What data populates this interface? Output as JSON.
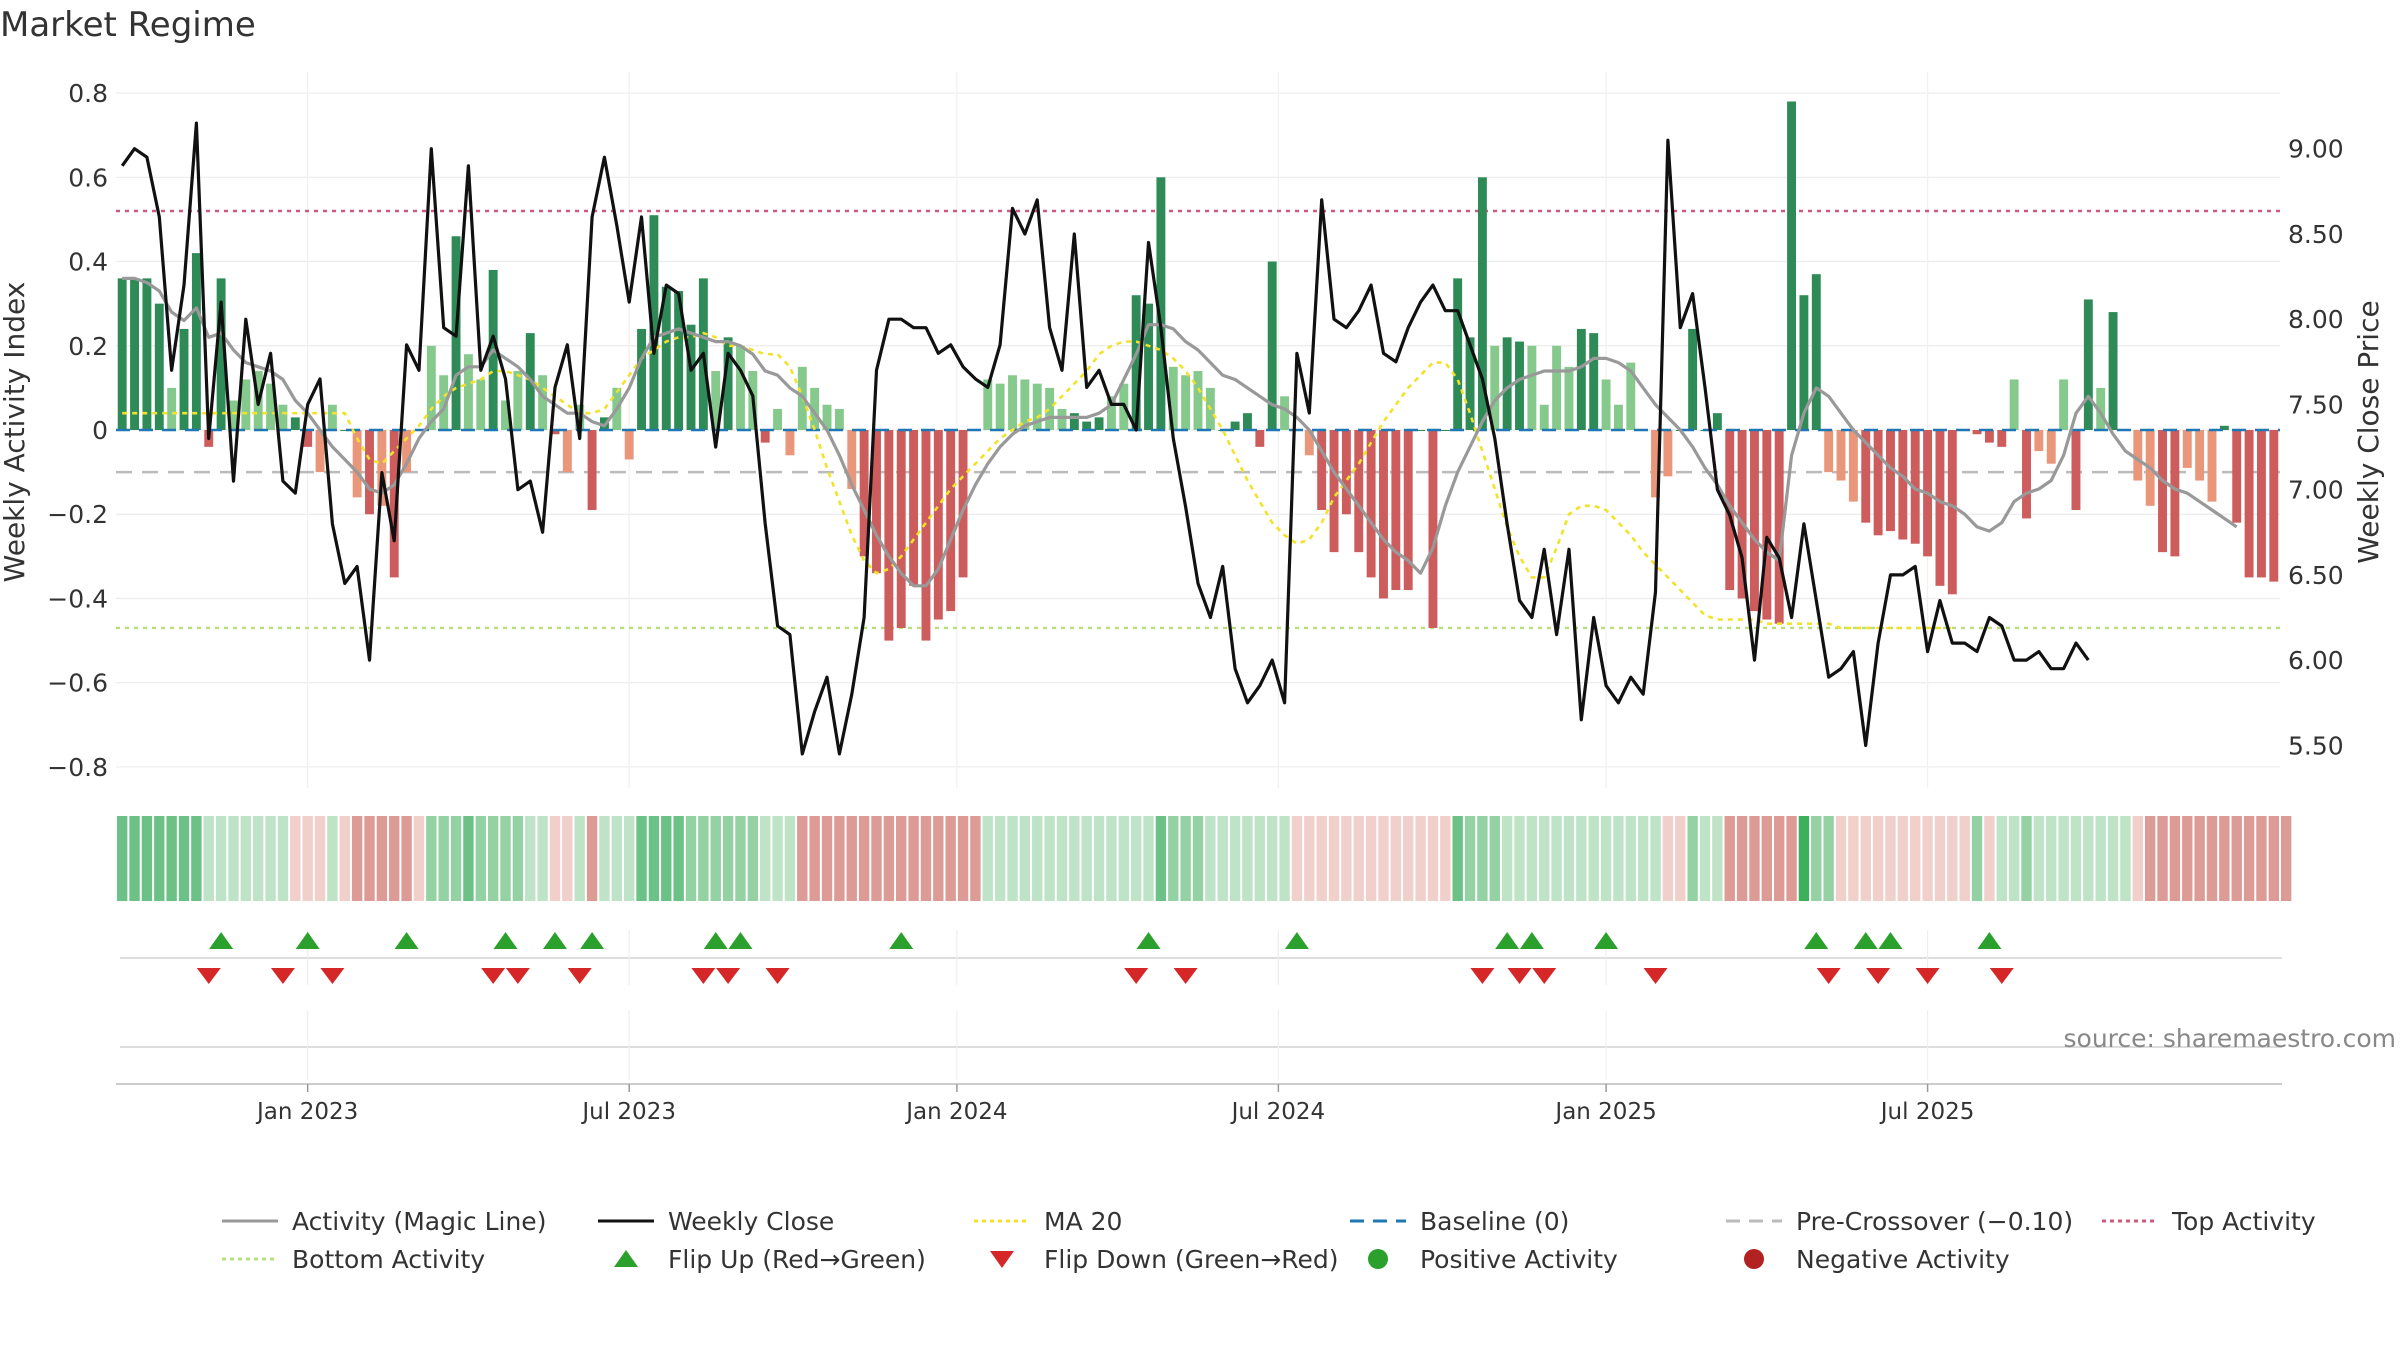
{
  "chart_data": {
    "type": "bar",
    "title": "Market Regime",
    "source": "source: sharemaestro.com",
    "y_left": {
      "label": "Weekly Activity Index",
      "range": [
        -0.85,
        0.85
      ],
      "ticks": [
        0.8,
        0.6,
        0.4,
        0.2,
        0,
        -0.2,
        -0.4,
        -0.6,
        -0.8
      ],
      "tick_labels": [
        "0.8",
        "0.6",
        "0.4",
        "0.2",
        "0",
        "−0.2",
        "−0.4",
        "−0.6",
        "−0.8"
      ]
    },
    "y_right": {
      "label": "Weekly Close Price",
      "range": [
        5.25,
        9.45
      ],
      "ticks": [
        9.0,
        8.5,
        8.0,
        7.5,
        7.0,
        6.5,
        6.0,
        5.5
      ],
      "tick_labels": [
        "9.00",
        "8.50",
        "8.00",
        "7.50",
        "7.00",
        "6.50",
        "6.00",
        "5.50"
      ]
    },
    "x": {
      "start_index": 0,
      "end_index": 157,
      "tick_labels": [
        "Jan 2023",
        "Jul 2023",
        "Jan 2024",
        "Jul 2024",
        "Jan 2025",
        "Jul 2025"
      ],
      "tick_positions": [
        15,
        41,
        67.5,
        93.5,
        120,
        146
      ]
    },
    "reference_lines": {
      "baseline": 0,
      "pre_crossover": -0.1,
      "top_activity": 0.52,
      "bottom_activity": -0.47
    },
    "series": {
      "activity_index": [
        0.36,
        0.36,
        0.36,
        0.3,
        0.1,
        0.24,
        0.42,
        -0.04,
        0.36,
        0.07,
        0.12,
        0.14,
        0.11,
        0.06,
        0.03,
        -0.04,
        -0.1,
        0.06,
        0.0,
        -0.16,
        -0.2,
        -0.18,
        -0.35,
        -0.1,
        0.0,
        0.2,
        0.13,
        0.46,
        0.18,
        0.12,
        0.38,
        0.07,
        0.14,
        0.23,
        0.13,
        -0.01,
        -0.1,
        0.06,
        -0.19,
        0.03,
        0.1,
        -0.07,
        0.24,
        0.51,
        0.34,
        0.33,
        0.25,
        0.36,
        0.14,
        0.22,
        0.2,
        0.14,
        -0.03,
        0.05,
        -0.06,
        0.15,
        0.1,
        0.06,
        0.05,
        -0.14,
        -0.3,
        -0.34,
        -0.5,
        -0.47,
        -0.37,
        -0.5,
        -0.45,
        -0.43,
        -0.35,
        0.0,
        0.12,
        0.11,
        0.13,
        0.12,
        0.11,
        0.1,
        0.05,
        0.04,
        0.02,
        0.03,
        0.08,
        0.11,
        0.32,
        0.3,
        0.6,
        0.15,
        0.13,
        0.14,
        0.1,
        0.0,
        0.02,
        0.04,
        -0.04,
        0.4,
        0.08,
        0.0,
        -0.06,
        -0.19,
        -0.29,
        -0.2,
        -0.29,
        -0.35,
        -0.4,
        -0.38,
        -0.38,
        0.0,
        -0.47,
        0.0,
        0.36,
        0.22,
        0.6,
        0.2,
        0.22,
        0.21,
        0.2,
        0.06,
        0.2,
        0.15,
        0.24,
        0.23,
        0.12,
        0.06,
        0.16,
        0.0,
        -0.16,
        -0.11,
        0.0,
        0.24,
        0.0,
        0.04,
        -0.38,
        -0.4,
        -0.43,
        -0.45,
        -0.46,
        0.78,
        0.32,
        0.37,
        -0.1,
        -0.12,
        -0.17,
        -0.22,
        -0.25,
        -0.24,
        -0.26,
        -0.27,
        -0.3,
        -0.37,
        -0.39,
        0.0,
        -0.01,
        -0.03,
        -0.04,
        0.12,
        -0.21,
        -0.05,
        -0.08,
        0.12,
        -0.19,
        0.31,
        0.1,
        0.28,
        0.0,
        -0.12,
        -0.18,
        -0.29,
        -0.3,
        -0.09,
        -0.12,
        -0.17,
        0.01,
        -0.22,
        -0.35,
        -0.35,
        -0.36
      ],
      "magic_line": [
        0.36,
        0.36,
        0.35,
        0.33,
        0.28,
        0.26,
        0.29,
        0.22,
        0.23,
        0.19,
        0.16,
        0.15,
        0.14,
        0.12,
        0.07,
        0.04,
        0.0,
        -0.04,
        -0.07,
        -0.1,
        -0.14,
        -0.15,
        -0.13,
        -0.08,
        -0.02,
        0.02,
        0.05,
        0.13,
        0.15,
        0.15,
        0.19,
        0.17,
        0.15,
        0.12,
        0.08,
        0.06,
        0.04,
        0.04,
        0.02,
        0.01,
        0.05,
        0.1,
        0.17,
        0.22,
        0.23,
        0.24,
        0.23,
        0.22,
        0.21,
        0.21,
        0.2,
        0.18,
        0.14,
        0.13,
        0.1,
        0.08,
        0.04,
        0.0,
        -0.06,
        -0.13,
        -0.19,
        -0.25,
        -0.3,
        -0.34,
        -0.37,
        -0.37,
        -0.33,
        -0.26,
        -0.19,
        -0.13,
        -0.08,
        -0.04,
        -0.01,
        0.01,
        0.02,
        0.03,
        0.03,
        0.03,
        0.03,
        0.04,
        0.06,
        0.12,
        0.18,
        0.25,
        0.25,
        0.24,
        0.21,
        0.19,
        0.16,
        0.13,
        0.12,
        0.1,
        0.08,
        0.06,
        0.05,
        0.03,
        0.0,
        -0.05,
        -0.1,
        -0.14,
        -0.18,
        -0.22,
        -0.26,
        -0.29,
        -0.31,
        -0.34,
        -0.28,
        -0.18,
        -0.1,
        -0.04,
        0.02,
        0.07,
        0.1,
        0.12,
        0.13,
        0.14,
        0.14,
        0.14,
        0.15,
        0.17,
        0.17,
        0.16,
        0.14,
        0.1,
        0.06,
        0.03,
        0.0,
        -0.04,
        -0.09,
        -0.13,
        -0.18,
        -0.22,
        -0.26,
        -0.29,
        -0.31,
        -0.06,
        0.04,
        0.1,
        0.08,
        0.04,
        0.0,
        -0.03,
        -0.06,
        -0.09,
        -0.11,
        -0.14,
        -0.15,
        -0.17,
        -0.18,
        -0.2,
        -0.23,
        -0.24,
        -0.22,
        -0.17,
        -0.15,
        -0.14,
        -0.12,
        -0.06,
        0.04,
        0.08,
        0.04,
        -0.01,
        -0.05,
        -0.07,
        -0.09,
        -0.12,
        -0.14,
        -0.15,
        -0.17,
        -0.19,
        -0.21,
        -0.23
      ],
      "ma20": [
        0.04,
        0.04,
        0.04,
        0.04,
        0.04,
        0.04,
        0.04,
        0.04,
        0.04,
        0.04,
        0.04,
        0.04,
        0.04,
        0.04,
        0.04,
        0.04,
        0.04,
        0.04,
        0.04,
        -0.02,
        -0.07,
        -0.08,
        -0.05,
        -0.02,
        0.01,
        0.05,
        0.08,
        0.1,
        0.11,
        0.12,
        0.14,
        0.14,
        0.13,
        0.12,
        0.1,
        0.08,
        0.06,
        0.04,
        0.04,
        0.05,
        0.09,
        0.13,
        0.17,
        0.19,
        0.21,
        0.22,
        0.22,
        0.23,
        0.22,
        0.2,
        0.2,
        0.19,
        0.18,
        0.18,
        0.15,
        0.08,
        0.0,
        -0.09,
        -0.17,
        -0.25,
        -0.31,
        -0.34,
        -0.33,
        -0.3,
        -0.26,
        -0.22,
        -0.18,
        -0.14,
        -0.11,
        -0.08,
        -0.05,
        -0.02,
        0.0,
        0.02,
        0.03,
        0.05,
        0.08,
        0.11,
        0.14,
        0.18,
        0.2,
        0.21,
        0.21,
        0.2,
        0.19,
        0.17,
        0.14,
        0.1,
        0.05,
        0.0,
        -0.06,
        -0.12,
        -0.17,
        -0.22,
        -0.25,
        -0.27,
        -0.26,
        -0.22,
        -0.16,
        -0.12,
        -0.08,
        -0.03,
        0.02,
        0.06,
        0.1,
        0.13,
        0.16,
        0.16,
        0.12,
        0.04,
        -0.05,
        -0.14,
        -0.23,
        -0.3,
        -0.35,
        -0.35,
        -0.28,
        -0.2,
        -0.18,
        -0.18,
        -0.19,
        -0.22,
        -0.25,
        -0.29,
        -0.32,
        -0.35,
        -0.38,
        -0.41,
        -0.44,
        -0.45,
        -0.45,
        -0.45,
        -0.45,
        -0.46,
        -0.46,
        -0.46,
        -0.46,
        -0.46,
        -0.46,
        -0.47,
        -0.47,
        -0.47,
        -0.47,
        -0.47,
        -0.47,
        -0.47,
        -0.47,
        -0.47,
        -0.47
      ],
      "weekly_close": [
        8.9,
        9.0,
        8.95,
        8.6,
        7.7,
        8.2,
        9.15,
        7.3,
        8.1,
        7.05,
        8.0,
        7.5,
        7.8,
        7.05,
        6.98,
        7.5,
        7.65,
        6.8,
        6.45,
        6.55,
        6.0,
        7.1,
        6.7,
        7.85,
        7.7,
        9.0,
        7.95,
        7.9,
        8.9,
        7.7,
        7.9,
        7.65,
        7.0,
        7.05,
        6.75,
        7.6,
        7.85,
        7.3,
        8.6,
        8.95,
        8.55,
        8.1,
        8.6,
        7.8,
        8.2,
        8.15,
        7.7,
        7.8,
        7.25,
        7.8,
        7.7,
        7.55,
        6.8,
        6.2,
        6.15,
        5.45,
        5.7,
        5.9,
        5.45,
        5.8,
        6.25,
        7.7,
        8.0,
        8.0,
        7.95,
        7.95,
        7.8,
        7.85,
        7.72,
        7.65,
        7.6,
        7.85,
        8.65,
        8.5,
        8.7,
        7.95,
        7.7,
        8.5,
        7.6,
        7.7,
        7.5,
        7.5,
        7.35,
        8.45,
        7.95,
        7.3,
        6.9,
        6.45,
        6.25,
        6.55,
        5.95,
        5.75,
        5.85,
        6.0,
        5.75,
        7.8,
        7.45,
        8.7,
        8.0,
        7.95,
        8.05,
        8.2,
        7.8,
        7.75,
        7.95,
        8.1,
        8.2,
        8.05,
        8.05,
        7.85,
        7.65,
        7.3,
        6.8,
        6.35,
        6.25,
        6.65,
        6.15,
        6.65,
        5.65,
        6.25,
        5.85,
        5.75,
        5.9,
        5.8,
        6.4,
        9.05,
        7.95,
        8.15,
        7.6,
        7.0,
        6.85,
        6.6,
        6.0,
        6.72,
        6.6,
        6.25,
        6.8,
        6.35,
        5.9,
        5.95,
        6.05,
        5.5,
        6.1,
        6.5,
        6.5,
        6.55,
        6.05,
        6.35,
        6.1,
        6.1,
        6.05,
        6.25,
        6.2,
        6.0,
        6.0,
        6.05,
        5.95,
        5.95,
        6.1,
        6.0
      ],
      "regime_strip": [
        3,
        3,
        3,
        3,
        3,
        3,
        3,
        1,
        1,
        1,
        1,
        1,
        1,
        1,
        -1,
        -1,
        -1,
        1,
        -1,
        -2,
        -2,
        -2,
        -2,
        -2,
        -1,
        2,
        2,
        2,
        3,
        2,
        2,
        2,
        2,
        1,
        1,
        -1,
        -1,
        1,
        -2,
        1,
        1,
        1,
        3,
        3,
        3,
        3,
        2,
        2,
        2,
        2,
        2,
        2,
        1,
        1,
        1,
        -2,
        -2,
        -2,
        -2,
        -2,
        -2,
        -2,
        -2,
        -2,
        -2,
        -2,
        -2,
        -2,
        -2,
        -2,
        1,
        1,
        1,
        1,
        1,
        1,
        1,
        1,
        1,
        1,
        1,
        1,
        1,
        1,
        3,
        2,
        2,
        2,
        1,
        1,
        1,
        1,
        1,
        1,
        1,
        -1,
        -1,
        -1,
        -1,
        -1,
        -1,
        -1,
        -1,
        -1,
        -1,
        -1,
        -1,
        -1,
        3,
        2,
        2,
        2,
        1,
        1,
        1,
        1,
        1,
        1,
        1,
        1,
        1,
        1,
        1,
        1,
        1,
        -1,
        -1,
        2,
        1,
        1,
        -2,
        -2,
        -2,
        -2,
        -2,
        -2,
        4,
        2,
        2,
        -1,
        -1,
        -1,
        -1,
        -1,
        -1,
        -1,
        -1,
        -1,
        -1,
        -1,
        2,
        -1,
        1,
        1,
        2,
        1,
        1,
        1,
        1,
        1,
        1,
        1,
        1,
        -1,
        -2,
        -2,
        -2,
        -2,
        -2,
        -2,
        -2,
        -2,
        -2,
        -2,
        -2,
        -2
      ],
      "flip_up": [
        8,
        15,
        23,
        31,
        35,
        38,
        48,
        50,
        63,
        83,
        95,
        112,
        114,
        120,
        137,
        141,
        143,
        151
      ],
      "flip_down": [
        7,
        13,
        17,
        30,
        32,
        37,
        47,
        49,
        53,
        82,
        86,
        110,
        113,
        115,
        124,
        138,
        142,
        146,
        152
      ]
    },
    "legend": [
      "Activity (Magic Line)",
      "Weekly Close",
      "MA 20",
      "Baseline (0)",
      "Pre-Crossover (−0.10)",
      "Top Activity",
      "Bottom Activity",
      "Flip Up (Red→Green)",
      "Flip Down (Green→Red)",
      "Positive Activity",
      "Negative Activity"
    ]
  },
  "colors": {
    "pos_dark": "#2e8b57",
    "pos_light": "#86c98d",
    "neg_dark": "#cd5c5c",
    "neg_light": "#e9967a",
    "magic_line": "#999999",
    "weekly_close": "#111111",
    "ma20": "#f2e22b",
    "baseline": "#1f77b4",
    "pre_crossover": "#bbbbbb",
    "top_activity": "#d05a7e",
    "bottom_activity": "#b8e07a",
    "flip_up": "#2ca02c",
    "flip_down": "#d62728",
    "positive_dot": "#2ca02c",
    "negative_dot": "#b22222"
  }
}
